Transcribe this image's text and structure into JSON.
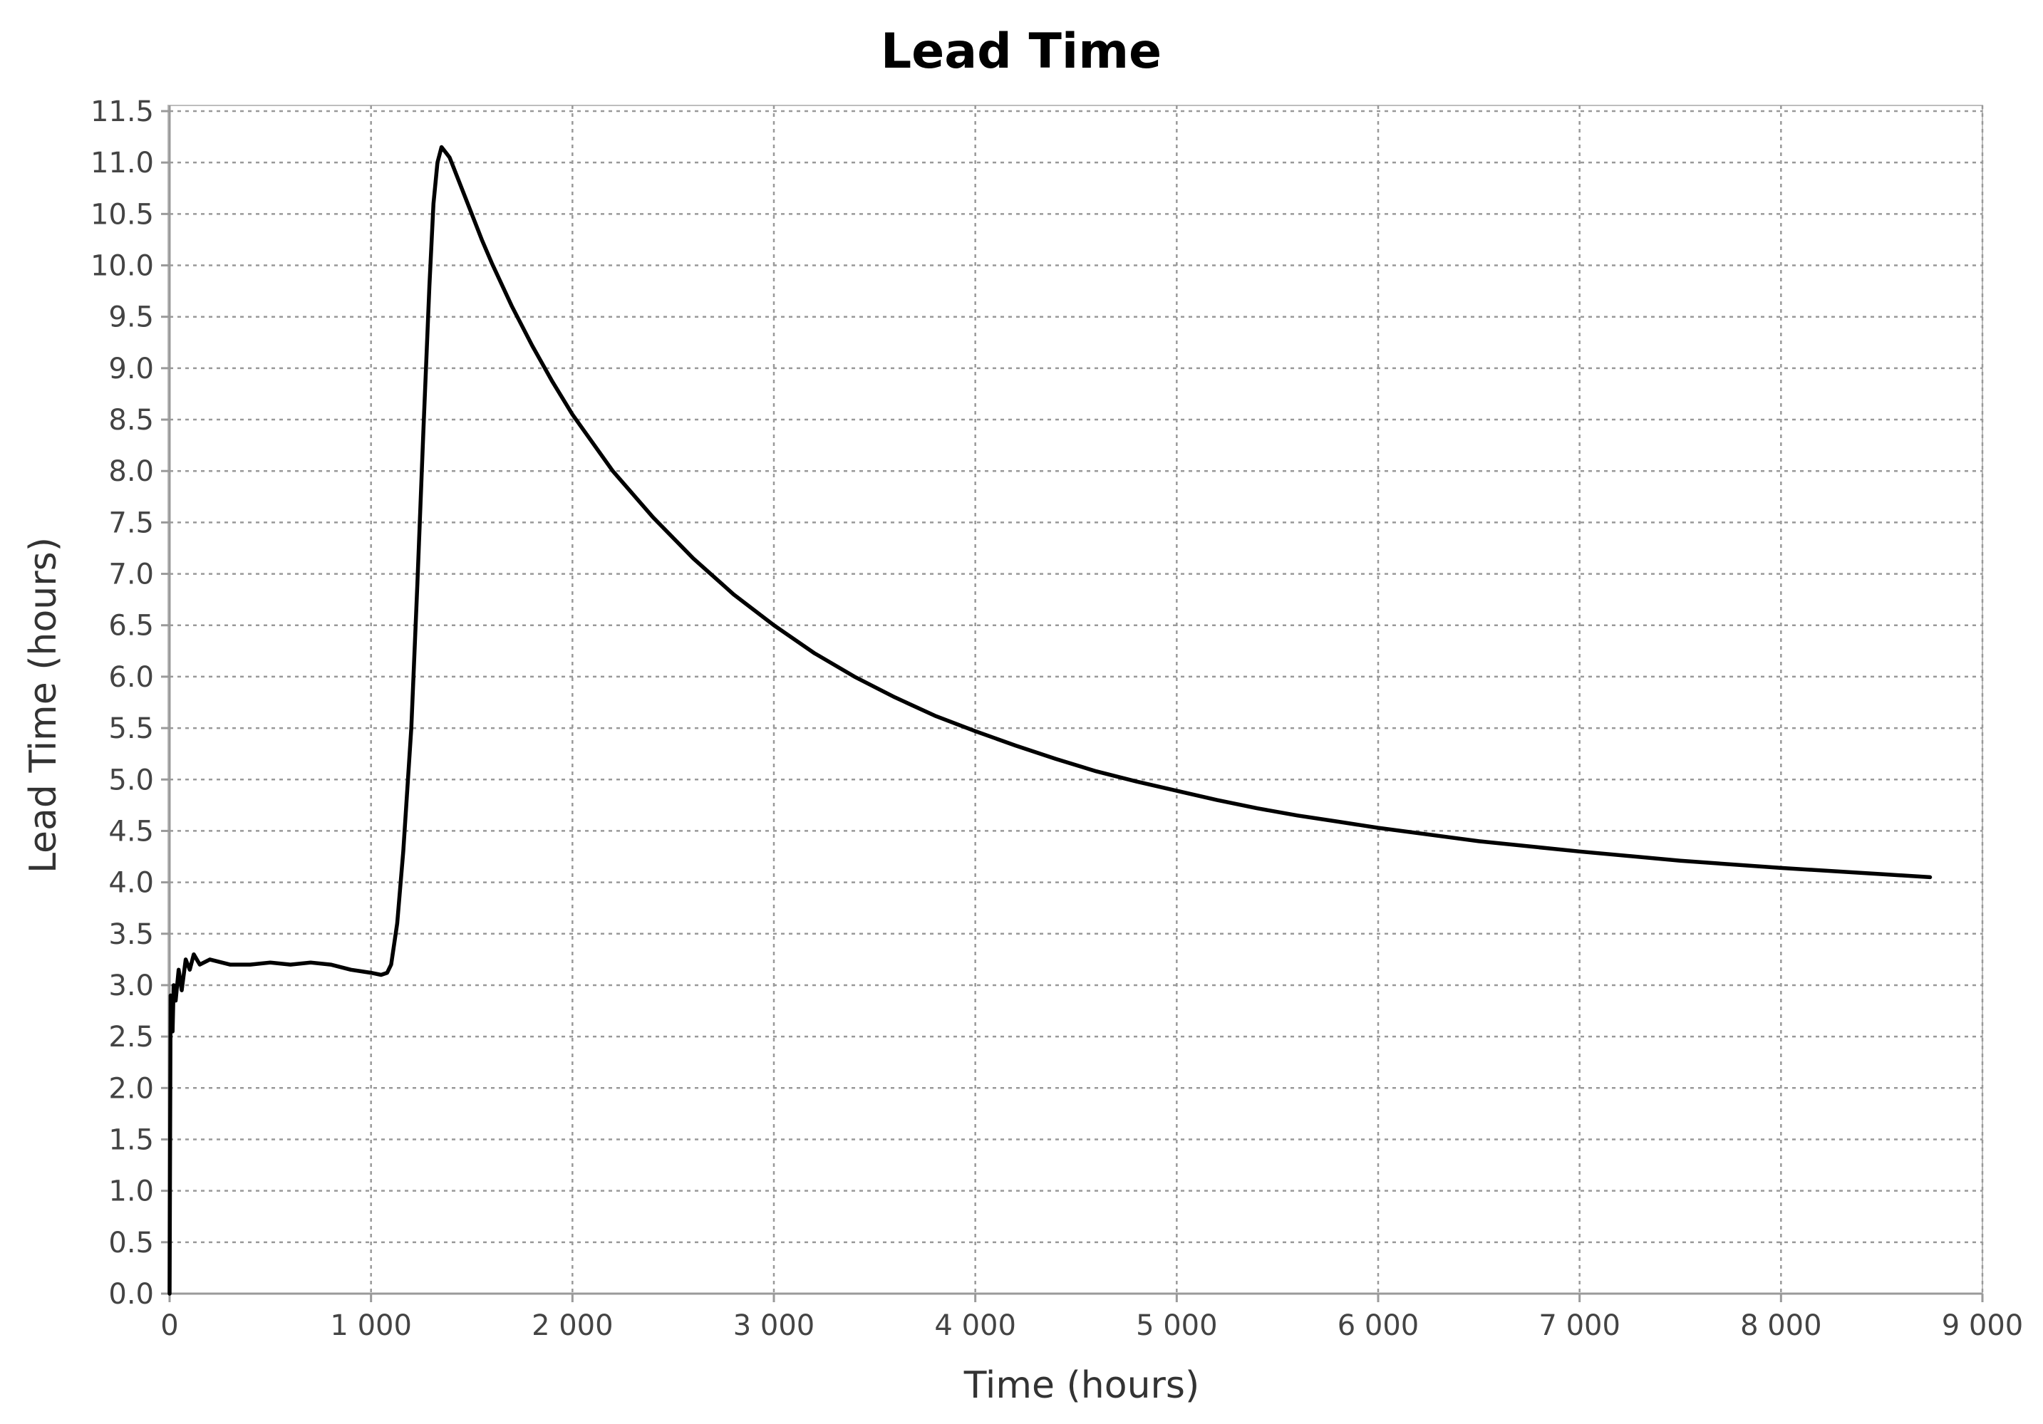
{
  "chart_data": {
    "type": "line",
    "title": "Lead Time",
    "xlabel": "Time (hours)",
    "ylabel": "Lead Time (hours)",
    "xlim": [
      0,
      9000
    ],
    "ylim": [
      0,
      11.5
    ],
    "xticks": [
      0,
      1000,
      2000,
      3000,
      4000,
      5000,
      6000,
      7000,
      8000,
      9000
    ],
    "xtick_labels": [
      "0",
      "1 000",
      "2 000",
      "3 000",
      "4 000",
      "5 000",
      "6 000",
      "7 000",
      "8 000",
      "9 000"
    ],
    "yticks": [
      0,
      0.5,
      1,
      1.5,
      2,
      2.5,
      3,
      3.5,
      4,
      4.5,
      5,
      5.5,
      6,
      6.5,
      7,
      7.5,
      8,
      8.5,
      9,
      9.5,
      10,
      10.5,
      11,
      11.5
    ],
    "ytick_labels": [
      "0.0",
      "0.5",
      "1.0",
      "1.5",
      "2.0",
      "2.5",
      "3.0",
      "3.5",
      "4.0",
      "4.5",
      "5.0",
      "5.5",
      "6.0",
      "6.5",
      "7.0",
      "7.5",
      "8.0",
      "8.5",
      "9.0",
      "9.5",
      "10.0",
      "10.5",
      "11.0",
      "11.5"
    ],
    "grid": true,
    "legend": "none",
    "series": [
      {
        "color": "#000000",
        "x": [
          0,
          5,
          15,
          20,
          30,
          45,
          60,
          80,
          100,
          120,
          150,
          200,
          300,
          400,
          500,
          600,
          700,
          800,
          900,
          1000,
          1050,
          1080,
          1100,
          1130,
          1160,
          1200,
          1230,
          1260,
          1290,
          1310,
          1330,
          1350,
          1370,
          1390,
          1410,
          1450,
          1500,
          1550,
          1600,
          1700,
          1800,
          1900,
          2000,
          2200,
          2400,
          2600,
          2800,
          3000,
          3200,
          3400,
          3600,
          3800,
          4000,
          4200,
          4400,
          4600,
          4800,
          5000,
          5200,
          5400,
          5600,
          5800,
          6000,
          6500,
          7000,
          7500,
          8000,
          8500,
          8740
        ],
        "y": [
          0.0,
          2.9,
          2.55,
          3.0,
          2.85,
          3.15,
          2.95,
          3.25,
          3.15,
          3.3,
          3.2,
          3.25,
          3.2,
          3.2,
          3.22,
          3.2,
          3.22,
          3.2,
          3.15,
          3.12,
          3.1,
          3.12,
          3.2,
          3.6,
          4.3,
          5.5,
          6.9,
          8.4,
          9.8,
          10.6,
          11.0,
          11.15,
          11.1,
          11.05,
          10.95,
          10.75,
          10.5,
          10.25,
          10.02,
          9.6,
          9.22,
          8.87,
          8.55,
          8.0,
          7.55,
          7.15,
          6.8,
          6.5,
          6.23,
          6.0,
          5.8,
          5.62,
          5.47,
          5.33,
          5.2,
          5.08,
          4.98,
          4.89,
          4.8,
          4.72,
          4.65,
          4.59,
          4.53,
          4.4,
          4.3,
          4.21,
          4.14,
          4.08,
          4.05
        ]
      }
    ]
  }
}
